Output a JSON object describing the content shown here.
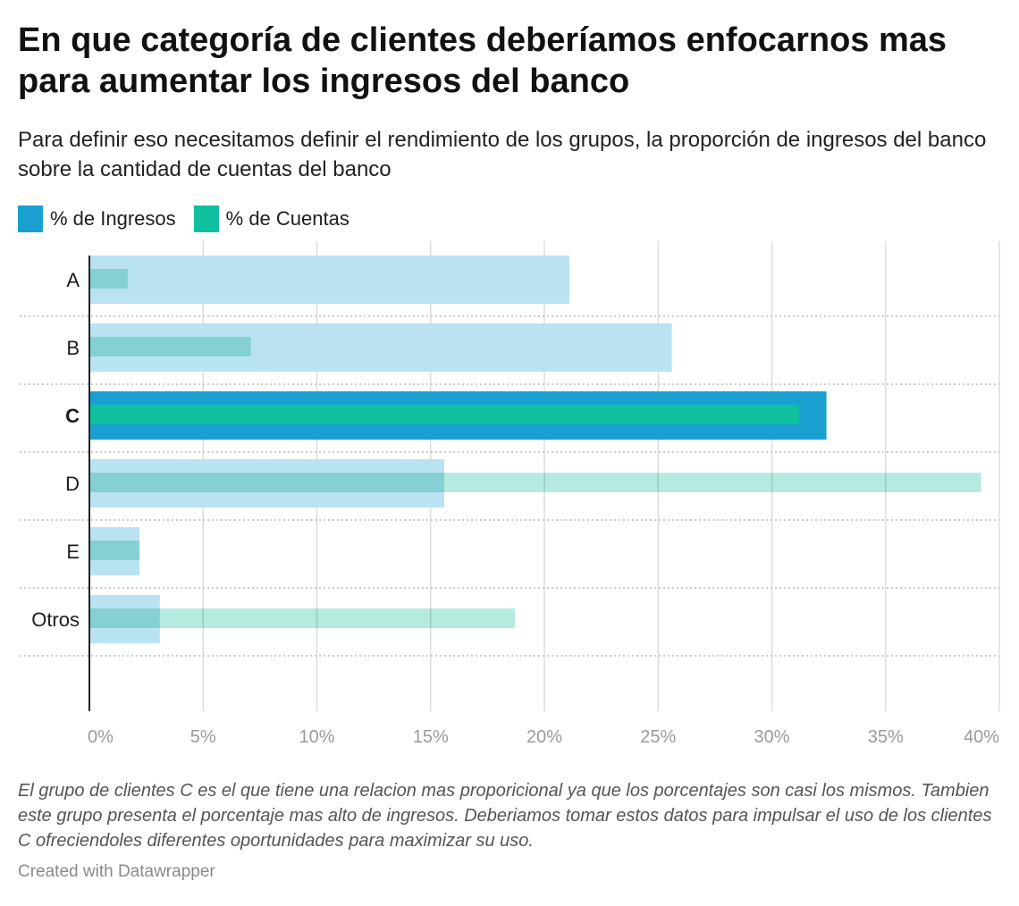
{
  "title": "En que categoría de clientes deberíamos enfocarnos mas para aumentar los ingresos del banco",
  "subtitle": "Para definir eso necesitamos definir el rendimiento de los grupos, la proporción de ingresos del banco sobre la cantidad de cuentas del banco",
  "legend": [
    {
      "label": "% de Ingresos",
      "color": "#1aa0d0"
    },
    {
      "label": "% de Cuentas",
      "color": "#0fbf9f"
    }
  ],
  "notes": "El grupo de clientes C es el que tiene una relacion mas proporicional ya que los porcentajes son casi los mismos. Tambien este grupo presenta el porcentaje mas alto de ingresos. Deberiamos tomar estos datos para impulsar el uso de los clientes C ofreciendoles diferentes oportunidades para maximizar su uso.",
  "byline": "Created with Datawrapper",
  "chart_data": {
    "type": "bar",
    "orientation": "horizontal",
    "categories": [
      "A",
      "B",
      "C",
      "D",
      "E",
      "Otros"
    ],
    "highlighted_category": "C",
    "series": [
      {
        "name": "% de Ingresos",
        "values": [
          21.1,
          25.6,
          32.4,
          15.6,
          2.2,
          3.1
        ],
        "color": "#1aa0d0",
        "faded_color": "#bae3f1"
      },
      {
        "name": "% de Cuentas",
        "values": [
          1.7,
          7.1,
          31.2,
          39.2,
          2.2,
          18.7
        ],
        "color": "#0fbf9f",
        "faded_color": "#b5eae0"
      }
    ],
    "x_ticks": [
      0,
      5,
      10,
      15,
      20,
      25,
      30,
      35,
      40
    ],
    "x_tick_labels": [
      "0%",
      "5%",
      "10%",
      "15%",
      "20%",
      "25%",
      "30%",
      "35%",
      "40%"
    ],
    "xlim": [
      0,
      40
    ],
    "grid": true
  }
}
